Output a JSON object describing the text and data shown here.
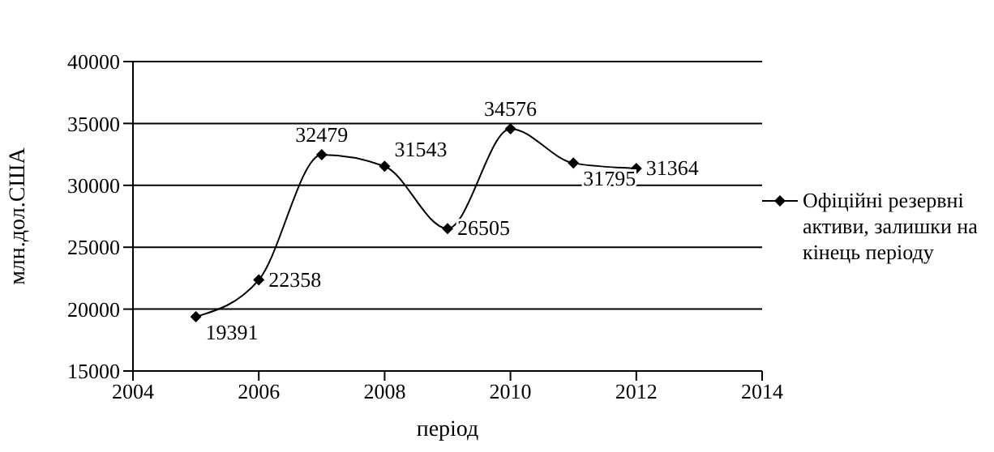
{
  "chart_data": {
    "type": "line",
    "xlabel": "період",
    "ylabel": "млн.дол.США",
    "x": [
      2005,
      2006,
      2007,
      2008,
      2009,
      2010,
      2011,
      2012
    ],
    "series": [
      {
        "name": "Офіційні резервні активи, залишки на кінець періоду",
        "color": "#000000",
        "values": [
          19391,
          22358,
          32479,
          31543,
          26505,
          34576,
          31795,
          31364
        ]
      }
    ],
    "xlim": [
      2004,
      2014
    ],
    "xticks": [
      2004,
      2006,
      2008,
      2010,
      2012,
      2014
    ],
    "ylim": [
      15000,
      40000
    ],
    "yticks": [
      15000,
      20000,
      25000,
      30000,
      35000,
      40000
    ],
    "grid": "y",
    "legend": "right",
    "marker": "diamond",
    "line_style": "solid",
    "data_labels": true
  }
}
